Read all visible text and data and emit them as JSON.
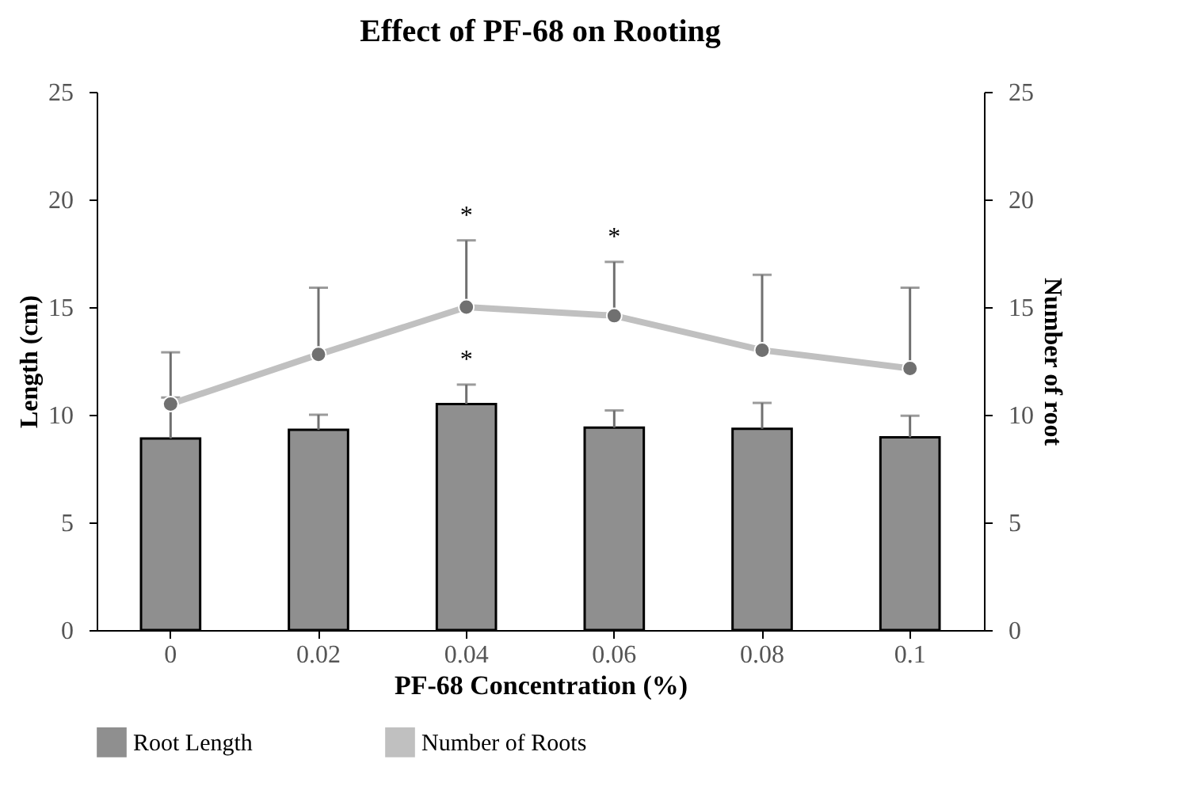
{
  "chart_data": {
    "type": "bar",
    "title": "Effect of PF-68 on Rooting",
    "xlabel": "PF-68 Concentration (%)",
    "ylabel": "Length (cm)",
    "y2label": "Number of root",
    "categories": [
      "0",
      "0.02",
      "0.04",
      "0.06",
      "0.08",
      "0.1"
    ],
    "series": [
      {
        "name": "Root Length",
        "color": "#8f8f8f",
        "values": [
          8.9,
          9.3,
          10.5,
          9.4,
          9.35,
          8.95
        ],
        "value_labels": [
          null,
          null,
          "*",
          null,
          null,
          null
        ],
        "errors": [
          [
            8.9,
            10.8
          ],
          [
            9.3,
            10.0
          ],
          [
            10.5,
            11.4
          ],
          [
            9.4,
            10.2
          ],
          [
            9.35,
            10.55
          ],
          [
            8.95,
            9.95
          ]
        ]
      },
      {
        "name": "Number of Roots",
        "type": "line",
        "axis": "y2",
        "color": "#c0c0c0",
        "marker": "circle",
        "values": [
          10.5,
          12.8,
          15.0,
          14.6,
          13.0,
          12.15
        ],
        "value_labels": [
          null,
          null,
          "*",
          "*",
          null,
          null
        ],
        "errors": [
          [
            10.5,
            12.9
          ],
          [
            12.8,
            15.9
          ],
          [
            15.0,
            18.1
          ],
          [
            14.6,
            17.1
          ],
          [
            13.0,
            16.5
          ],
          [
            12.15,
            15.9
          ]
        ]
      }
    ],
    "ylim": [
      0,
      25
    ],
    "yticks": [
      0,
      5,
      10,
      15,
      20,
      25
    ],
    "y2lim": [
      0,
      25
    ],
    "y2ticks": [
      0,
      5,
      10,
      15,
      20,
      25
    ],
    "grid": false,
    "legend": "bottom"
  }
}
